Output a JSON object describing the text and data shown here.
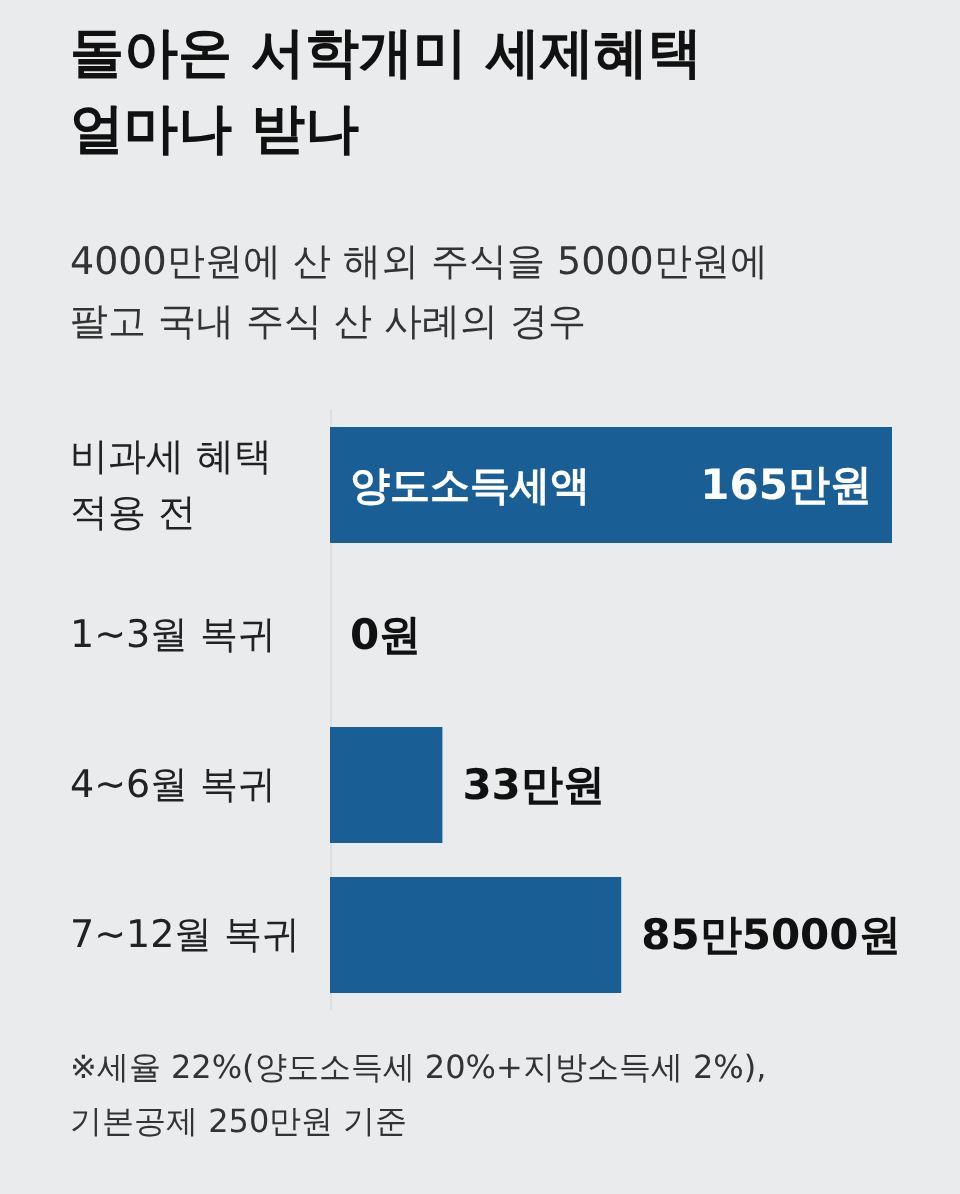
{
  "chart_data": {
    "type": "bar",
    "orientation": "horizontal",
    "title": "돌아온 서학개미 세제혜택\n얼마나 받나",
    "subtitle": "4000만원에 산 해외 주식을 5000만원에\n팔고 국내 주식 산 사례의 경우",
    "categories": [
      "비과세 혜택\n적용 전",
      "1~3월 복귀",
      "4~6월 복귀",
      "7~12월 복귀"
    ],
    "values": [
      165,
      0,
      33,
      85.5
    ],
    "color": "#1a5e96",
    "value_labels": [
      "165만원",
      "0원",
      "33만원",
      "85만5000원"
    ],
    "annotations": [
      {
        "text": "양도소득세액",
        "x": 0,
        "y": "비과세 혜택\n적용 전"
      },
      "※세율 22%(양도소득세 20%+지방소득세 2%),\n기본공제 250만원 기준"
    ]
  }
}
